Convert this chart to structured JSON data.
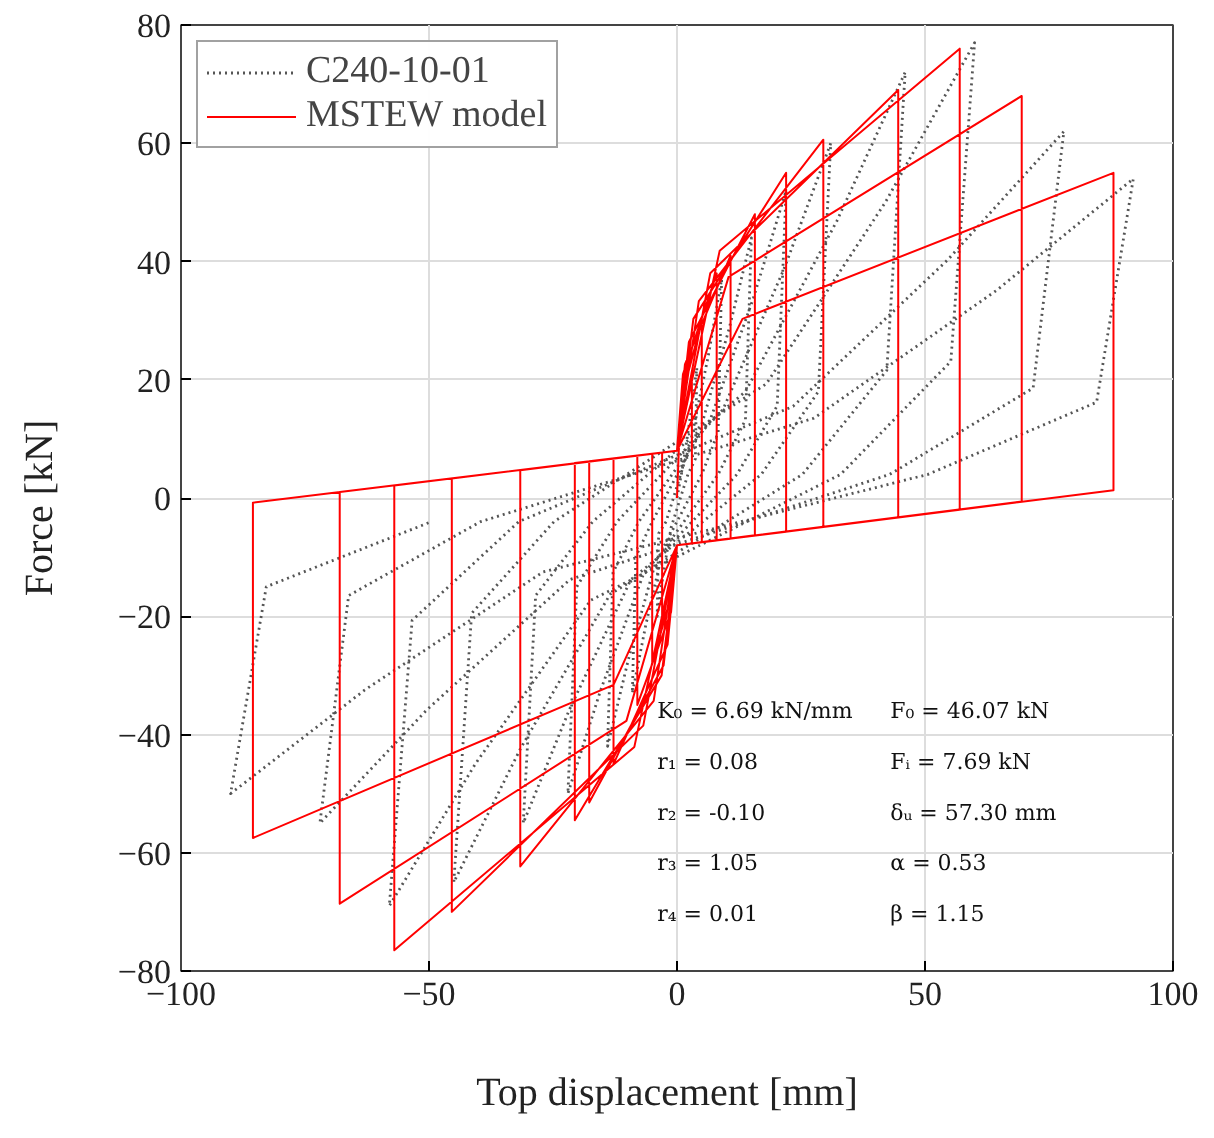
{
  "chart_data": {
    "type": "line",
    "xlabel": "Top displacement   [mm]",
    "ylabel": "Force   [kN]",
    "xlim": [
      -100,
      100
    ],
    "ylim": [
      -80,
      80
    ],
    "xticks": [
      -100,
      -50,
      0,
      50,
      100
    ],
    "yticks": [
      -80,
      -60,
      -40,
      -20,
      0,
      20,
      40,
      60,
      80
    ],
    "grid": true,
    "legend": "top left",
    "series": [
      {
        "name": "C240-10-01",
        "color": "#555555",
        "line_style": "dotted",
        "x": [
          0,
          1.2,
          2.8,
          4,
          3.7,
          2.2,
          -1.2,
          -2.8,
          -4,
          -3.7,
          -2.2,
          2.7,
          6.3,
          9,
          8.3,
          5,
          -2.7,
          -6.3,
          -9,
          -8.3,
          -5,
          4.5,
          10.5,
          15,
          13.8,
          8.3,
          -4.2,
          -9.8,
          -14,
          -12.9,
          -7.7,
          6.6,
          15.4,
          22,
          20.2,
          12.1,
          -6.6,
          -15.4,
          -22,
          -20.2,
          -12.1,
          9.3,
          21.7,
          31,
          28.5,
          17,
          -9.3,
          -21.7,
          -31,
          -28.5,
          -17,
          13.8,
          32.2,
          46,
          42.3,
          25.3,
          -13.5,
          -31.5,
          -45,
          -41.4,
          -24.8,
          18,
          42,
          60,
          55.2,
          33,
          -17.4,
          -40.6,
          -58,
          -53.4,
          -31.9,
          23.4,
          54.6,
          78,
          71.8,
          42.9,
          -21.6,
          -50.4,
          -72,
          -66.2,
          -39.6,
          27.6,
          64.4,
          92,
          84.6,
          50.6,
          -27,
          -63,
          -90,
          -82.8,
          -49.5
        ],
        "values": [
          0,
          5.5,
          14.3,
          22,
          6.6,
          4,
          -5,
          -13,
          -20,
          -6,
          -4,
          9.3,
          24,
          37,
          11.1,
          4,
          -8.3,
          -21.5,
          -33,
          -9.9,
          -4,
          11,
          28.6,
          44,
          13.2,
          4,
          -10.5,
          -27.3,
          -42,
          -12.6,
          -4,
          13,
          33.8,
          52,
          15.6,
          4,
          -12.5,
          -32.5,
          -50,
          -15,
          -4,
          15,
          39,
          60,
          18,
          4,
          -13.8,
          -35.8,
          -55,
          -16.5,
          -4,
          18,
          46.8,
          72,
          21.6,
          4,
          -16.3,
          -42.3,
          -65,
          -19.5,
          -4,
          19.3,
          50,
          77,
          23.1,
          4,
          -17.3,
          -44.9,
          -69,
          -20.7,
          -4,
          15.5,
          40.3,
          62,
          18.6,
          4,
          -13.8,
          -35.8,
          -55,
          -16.5,
          -4,
          13.5,
          35.1,
          54,
          16.2,
          4,
          -12.5,
          -32.5,
          -50,
          -15,
          -4
        ]
      },
      {
        "name": "MSTEW model",
        "color": "#ff0000",
        "line_style": "solid",
        "x": [
          0,
          0.5,
          3,
          3,
          0,
          -0.5,
          -3,
          -3,
          0,
          0.8,
          5,
          5,
          0,
          -0.8,
          -5,
          -5,
          0,
          1.2,
          8,
          8,
          0,
          -1.2,
          -8,
          -8,
          0,
          1.6,
          10.8,
          10.8,
          0,
          -1.9,
          -12.8,
          -12.8,
          0,
          2.4,
          15.7,
          15.7,
          0,
          -2.7,
          -17.7,
          -17.7,
          0,
          3.3,
          22,
          22,
          0,
          -3.1,
          -20.6,
          -20.6,
          0,
          4.4,
          29.5,
          29.5,
          0,
          -4.7,
          -31.6,
          -31.6,
          0,
          6.7,
          44.6,
          44.6,
          0,
          -6.8,
          -45.4,
          -45.4,
          0,
          8.6,
          57,
          57,
          0,
          -8.6,
          -57,
          -57,
          0,
          10.4,
          69.5,
          69.5,
          0,
          -10.2,
          -68,
          -68,
          0,
          13.2,
          88,
          88,
          0,
          -12.8,
          -85.5,
          -85.5,
          0
        ],
        "values": [
          0,
          11,
          20,
          -7.7,
          -8,
          -11,
          -20,
          7.7,
          8,
          16.5,
          30,
          -7.5,
          -8,
          -15.4,
          -28,
          7.5,
          8,
          20.9,
          38,
          -7.2,
          -8,
          -19.3,
          -35,
          7.2,
          8,
          22.6,
          41,
          -6.9,
          -8,
          -24.8,
          -45,
          6.7,
          8,
          26.4,
          48,
          -6.3,
          -8,
          -28.3,
          -51.5,
          6.2,
          8,
          30.3,
          55,
          -5.7,
          -8,
          -30,
          -54.5,
          5.9,
          8,
          33.3,
          60.6,
          -4.9,
          -8,
          -34.3,
          -62.3,
          4.7,
          8,
          38,
          69,
          -3.3,
          -8,
          -38.5,
          -70,
          3.3,
          8,
          41.8,
          76,
          -2,
          -8,
          -42.1,
          -76.5,
          2.1,
          8,
          37.4,
          68,
          -0.6,
          -8,
          -37.7,
          -68.6,
          1,
          8,
          30.3,
          55,
          1.3,
          -8,
          -31.6,
          -57.5,
          -0.8,
          8
        ]
      }
    ],
    "annotations": [
      "K₀ = 6.69 kN/mm",
      "r₁ = 0.08",
      "r₂ = -0.10",
      "r₃ = 1.05",
      "r₄ = 0.01",
      "F₀ = 46.07 kN",
      "Fᵢ = 7.69 kN",
      "δᵤ = 57.30 mm",
      "α = 0.53",
      "β = 1.15"
    ]
  }
}
